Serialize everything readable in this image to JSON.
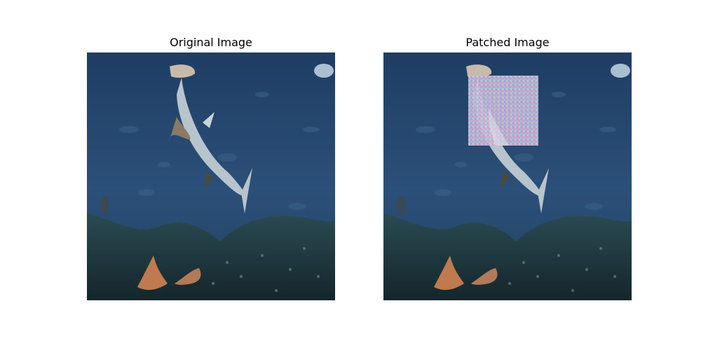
{
  "figure": {
    "left_title": "Original Image",
    "right_title": "Patched Image"
  },
  "scene": {
    "description_icons": [
      "hammerhead-shark",
      "stingray",
      "reef",
      "fish-school"
    ],
    "water_colors": [
      "#2a4f78",
      "#1e3a5f",
      "#163049"
    ],
    "patch_present_in_right": true
  }
}
